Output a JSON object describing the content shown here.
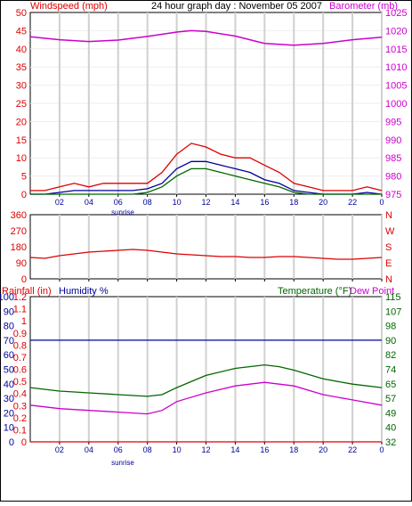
{
  "header": {
    "left_label": "Windspeed (mph)",
    "title": "24 hour graph day : November 05 2007",
    "right_label": "Barometer (mb)"
  },
  "colors": {
    "red": "#dd0000",
    "magenta": "#cc00cc",
    "blue": "#000099",
    "green": "#006600",
    "grid": "#d0d0d0",
    "axis": "#000000"
  },
  "chart_data": [
    {
      "type": "line",
      "name": "wind-and-barometer",
      "x_ticks": [
        "02",
        "04",
        "06",
        "08",
        "10",
        "12",
        "14",
        "16",
        "18",
        "20",
        "22",
        "0"
      ],
      "x_sub_label": "sunrise",
      "left_axis": {
        "label": "Windspeed (mph)",
        "ticks": [
          "50",
          "45",
          "40",
          "35",
          "30",
          "25",
          "20",
          "15",
          "10",
          "5",
          "0"
        ],
        "range": [
          0,
          50
        ]
      },
      "right_axis": {
        "label": "Barometer (mb)",
        "ticks": [
          "1025",
          "1020",
          "1015",
          "1010",
          "1005",
          "1000",
          "995",
          "990",
          "985",
          "980",
          "975"
        ],
        "range": [
          975,
          1025
        ]
      },
      "series": [
        {
          "color": "#cc00cc",
          "axis": "right",
          "x": [
            0,
            2,
            4,
            6,
            8,
            10,
            11,
            12,
            14,
            16,
            18,
            20,
            22,
            24
          ],
          "values": [
            1018.3,
            1017.5,
            1017.0,
            1017.4,
            1018.4,
            1019.6,
            1020.0,
            1019.8,
            1018.5,
            1016.5,
            1016.0,
            1016.5,
            1017.5,
            1018.2
          ]
        },
        {
          "color": "#dd0000",
          "axis": "left",
          "x": [
            0,
            1,
            2,
            3,
            4,
            5,
            6,
            7,
            8,
            9,
            10,
            11,
            12,
            13,
            14,
            15,
            16,
            17,
            18,
            19,
            20,
            21,
            22,
            23,
            24
          ],
          "values": [
            1,
            1,
            2,
            3,
            2,
            3,
            3,
            3,
            3,
            6,
            11,
            14,
            13,
            11,
            10,
            10,
            8,
            6,
            3,
            2,
            1,
            1,
            1,
            2,
            1
          ]
        },
        {
          "color": "#000099",
          "axis": "left",
          "x": [
            0,
            1,
            2,
            3,
            4,
            5,
            6,
            7,
            8,
            9,
            10,
            11,
            12,
            13,
            14,
            15,
            16,
            17,
            18,
            19,
            20,
            21,
            22,
            23,
            24
          ],
          "values": [
            0,
            0,
            0.5,
            1,
            1,
            1,
            1,
            1,
            1.5,
            3,
            7,
            9,
            9,
            8,
            7,
            6,
            4,
            3,
            1,
            0.5,
            0,
            0,
            0,
            0.5,
            0
          ]
        },
        {
          "color": "#006600",
          "axis": "left",
          "x": [
            0,
            1,
            2,
            3,
            4,
            5,
            6,
            7,
            8,
            9,
            10,
            11,
            12,
            13,
            14,
            15,
            16,
            17,
            18,
            19,
            20,
            21,
            22,
            23,
            24
          ],
          "values": [
            0,
            0,
            0,
            0,
            0,
            0,
            0,
            0,
            0.5,
            2,
            5,
            7,
            7,
            6,
            5,
            4,
            3,
            2,
            0.5,
            0,
            0,
            0,
            0,
            0,
            0
          ]
        }
      ]
    },
    {
      "type": "line",
      "name": "wind-direction",
      "x_ticks": [
        "02",
        "04",
        "06",
        "08",
        "10",
        "12",
        "14",
        "16",
        "18",
        "20",
        "22",
        "0"
      ],
      "left_axis": {
        "ticks": [
          "360",
          "270",
          "180",
          "90",
          "0"
        ],
        "range": [
          0,
          360
        ]
      },
      "right_axis": {
        "ticks": [
          "N",
          "W",
          "S",
          "E",
          "N"
        ]
      },
      "series": [
        {
          "color": "#dd0000",
          "x": [
            0,
            1,
            2,
            3,
            4,
            5,
            6,
            7,
            8,
            9,
            10,
            11,
            12,
            13,
            14,
            15,
            16,
            17,
            18,
            19,
            20,
            21,
            22,
            23,
            24
          ],
          "values": [
            120,
            115,
            130,
            140,
            150,
            155,
            160,
            165,
            160,
            150,
            140,
            135,
            130,
            125,
            125,
            120,
            120,
            125,
            125,
            120,
            115,
            110,
            110,
            115,
            120
          ]
        }
      ]
    },
    {
      "type": "line",
      "name": "rain-humidity-temperature",
      "x_ticks": [
        "02",
        "04",
        "06",
        "08",
        "10",
        "12",
        "14",
        "16",
        "18",
        "20",
        "22",
        "0"
      ],
      "x_sub_label": "sunrise",
      "header_labels": {
        "rain": "Rainfall (in)",
        "humidity": "Humidity %",
        "temperature": "Temperature (°F)",
        "dewpoint": "Dew Point"
      },
      "left_axis_rain": {
        "ticks": [
          "1.2",
          "1.1",
          "1",
          "0.9",
          "0.8",
          "0.7",
          "0.6",
          "0.5",
          "0.4",
          "0.3",
          "0.2",
          "0.1",
          "0"
        ],
        "range": [
          0,
          1.2
        ]
      },
      "left_axis_humidity": {
        "ticks": [
          "100",
          "90",
          "80",
          "70",
          "60",
          "50",
          "40",
          "30",
          "20",
          "10",
          "0"
        ],
        "range": [
          0,
          100
        ]
      },
      "right_axis_temperature": {
        "ticks": [
          "115",
          "107",
          "98",
          "90",
          "82",
          "74",
          "65",
          "57",
          "49",
          "40",
          "32"
        ],
        "range": [
          32,
          115
        ]
      },
      "series": [
        {
          "color": "#000099",
          "axis": "humidity",
          "x": [
            0,
            24
          ],
          "values": [
            70,
            70
          ]
        },
        {
          "color": "#dd0000",
          "axis": "rain",
          "x": [
            0,
            24
          ],
          "values": [
            0,
            0
          ]
        },
        {
          "color": "#006600",
          "axis": "temperature",
          "x": [
            0,
            2,
            4,
            6,
            8,
            9,
            10,
            12,
            14,
            16,
            17,
            18,
            20,
            22,
            24
          ],
          "values": [
            63,
            61,
            60,
            59,
            58,
            59,
            63,
            70,
            74,
            76,
            75,
            73,
            68,
            65,
            63
          ]
        },
        {
          "color": "#cc00cc",
          "axis": "temperature",
          "x": [
            0,
            2,
            4,
            6,
            8,
            9,
            10,
            12,
            14,
            16,
            17,
            18,
            20,
            22,
            24
          ],
          "values": [
            53,
            51,
            50,
            49,
            48,
            50,
            55,
            60,
            64,
            66,
            65,
            64,
            59,
            56,
            53
          ]
        }
      ]
    }
  ]
}
